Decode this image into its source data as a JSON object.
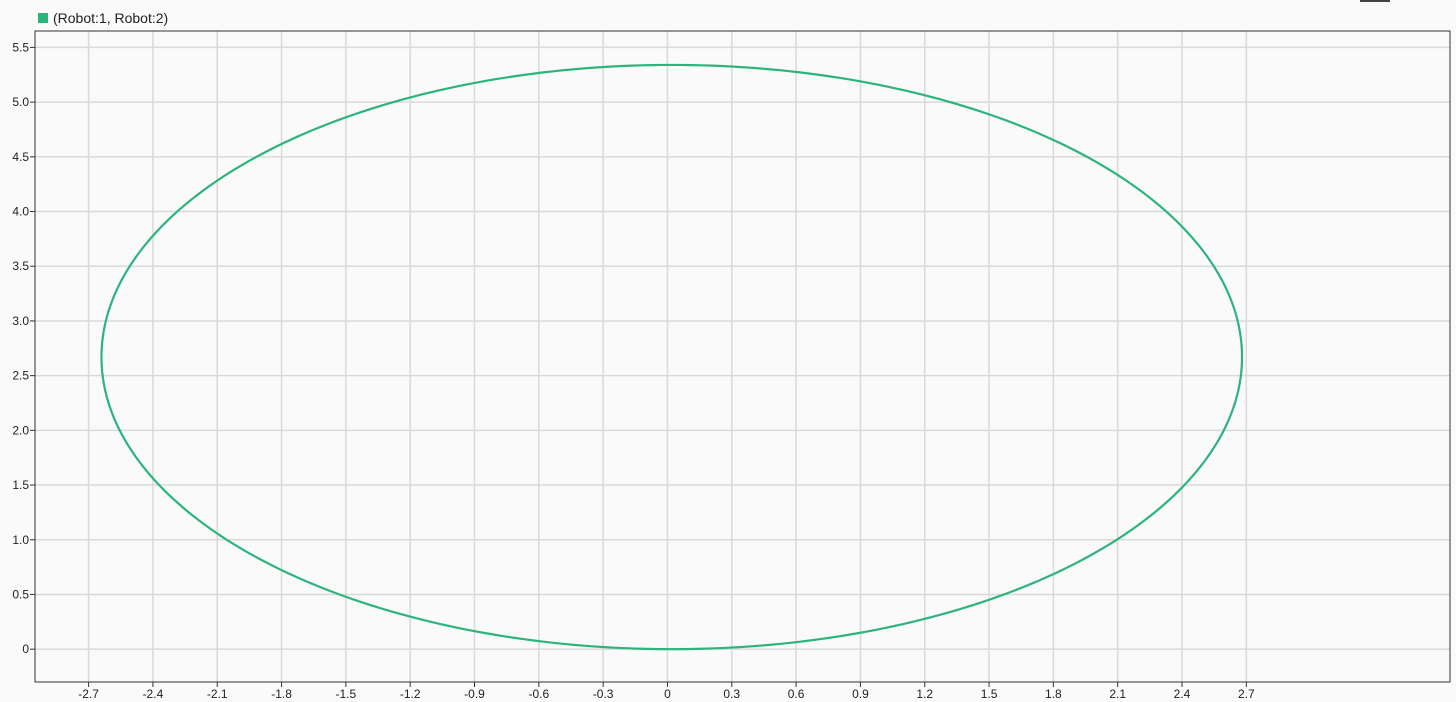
{
  "legend": {
    "label": "(Robot:1, Robot:2)",
    "color": "#2db47d"
  },
  "chart_data": {
    "type": "line",
    "title": "",
    "xlabel": "",
    "ylabel": "",
    "xlim": [
      -2.95,
      3.65
    ],
    "ylim": [
      -0.3,
      5.65
    ],
    "grid": true,
    "legend_position": "top-left",
    "x_ticks": [
      "-2.7",
      "-2.4",
      "-2.1",
      "-1.8",
      "-1.5",
      "-1.2",
      "-0.9",
      "-0.6",
      "-0.3",
      "0",
      "0.3",
      "0.6",
      "0.9",
      "1.2",
      "1.5",
      "1.8",
      "2.1",
      "2.4",
      "2.7"
    ],
    "y_ticks": [
      "0",
      "0.5",
      "1.0",
      "1.5",
      "2.0",
      "2.5",
      "3.0",
      "3.5",
      "4.0",
      "4.5",
      "5.0",
      "5.5"
    ],
    "series": [
      {
        "name": "(Robot:1, Robot:2)",
        "color": "#2db47d",
        "shape": "ellipse",
        "center": [
          0.02,
          2.67
        ],
        "semi_axes": [
          2.66,
          2.67
        ]
      }
    ]
  }
}
